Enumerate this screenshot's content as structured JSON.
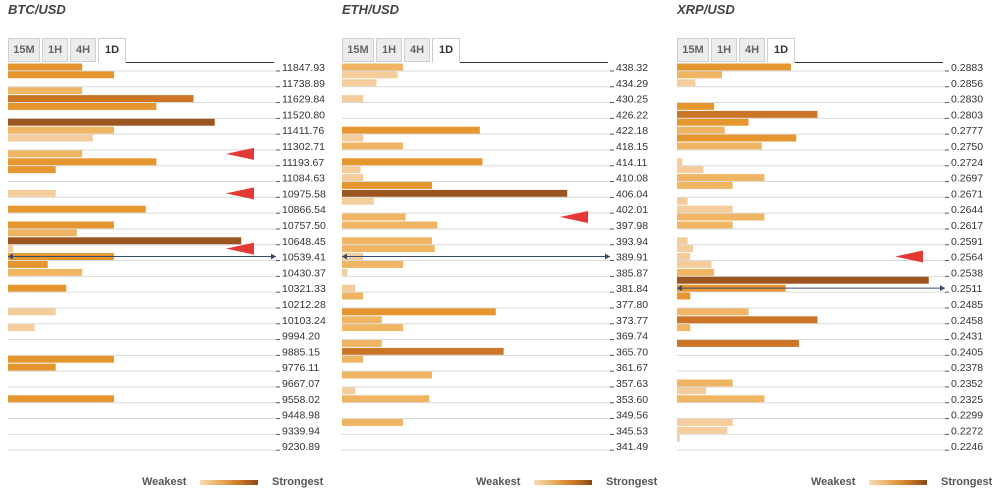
{
  "legend": {
    "weakest": "Weakest",
    "strongest": "Strongest"
  },
  "tabs": [
    "15M",
    "1H",
    "4H",
    "1D"
  ],
  "active_tab": "1D",
  "colors": {
    "lvl1": "#f5cc9c",
    "lvl2": "#efb562",
    "lvl3": "#e6962f",
    "lvl4": "#cd7526",
    "lvl5": "#9b5520",
    "arrow": "#e53935",
    "grid": "#d9d9d9"
  },
  "chart_data": [
    {
      "type": "bar",
      "title": "BTC/USD",
      "ticks": [
        "11847.93",
        "11738.89",
        "11629.84",
        "11520.80",
        "11411.76",
        "11302.71",
        "11193.67",
        "11084.63",
        "10975.58",
        "10866.54",
        "10757.50",
        "10648.45",
        "10539.41",
        "10430.37",
        "10321.33",
        "10212.28",
        "10103.24",
        "9994.20",
        "9885.15",
        "9776.11",
        "9667.07",
        "9558.02",
        "9448.98",
        "9339.94",
        "9230.89"
      ],
      "current_price_row": 24,
      "arrows": [
        11,
        16,
        23
      ],
      "bars": [
        {
          "row": 0,
          "value": 28,
          "level": 3
        },
        {
          "row": 1,
          "value": 40,
          "level": 3
        },
        {
          "row": 3,
          "value": 28,
          "level": 2
        },
        {
          "row": 4,
          "value": 70,
          "level": 4
        },
        {
          "row": 5,
          "value": 56,
          "level": 3
        },
        {
          "row": 7,
          "value": 78,
          "level": 5
        },
        {
          "row": 8,
          "value": 40,
          "level": 2
        },
        {
          "row": 9,
          "value": 32,
          "level": 1
        },
        {
          "row": 11,
          "value": 28,
          "level": 2
        },
        {
          "row": 12,
          "value": 56,
          "level": 3
        },
        {
          "row": 13,
          "value": 18,
          "level": 3
        },
        {
          "row": 16,
          "value": 18,
          "level": 1
        },
        {
          "row": 18,
          "value": 52,
          "level": 3
        },
        {
          "row": 20,
          "value": 40,
          "level": 3
        },
        {
          "row": 21,
          "value": 26,
          "level": 2
        },
        {
          "row": 22,
          "value": 88,
          "level": 5
        },
        {
          "row": 23,
          "value": 2,
          "level": 1
        },
        {
          "row": 24,
          "value": 40,
          "level": 3
        },
        {
          "row": 25,
          "value": 15,
          "level": 3
        },
        {
          "row": 26,
          "value": 28,
          "level": 2
        },
        {
          "row": 28,
          "value": 22,
          "level": 3
        },
        {
          "row": 31,
          "value": 18,
          "level": 1
        },
        {
          "row": 33,
          "value": 10,
          "level": 1
        },
        {
          "row": 37,
          "value": 40,
          "level": 3
        },
        {
          "row": 38,
          "value": 18,
          "level": 3
        },
        {
          "row": 42,
          "value": 40,
          "level": 3
        }
      ]
    },
    {
      "type": "bar",
      "title": "ETH/USD",
      "ticks": [
        "438.32",
        "434.29",
        "430.25",
        "426.22",
        "422.18",
        "418.15",
        "414.11",
        "410.08",
        "406.04",
        "402.01",
        "397.98",
        "393.94",
        "389.91",
        "385.87",
        "381.84",
        "377.80",
        "373.77",
        "369.74",
        "365.70",
        "361.67",
        "357.63",
        "353.60",
        "349.56",
        "345.53",
        "341.49"
      ],
      "current_price_row": 24,
      "arrows": [
        19
      ],
      "bars": [
        {
          "row": 0,
          "value": 23,
          "level": 2
        },
        {
          "row": 1,
          "value": 21,
          "level": 1
        },
        {
          "row": 2,
          "value": 13,
          "level": 1
        },
        {
          "row": 4,
          "value": 8,
          "level": 1
        },
        {
          "row": 8,
          "value": 52,
          "level": 3
        },
        {
          "row": 9,
          "value": 8,
          "level": 1
        },
        {
          "row": 10,
          "value": 23,
          "level": 2
        },
        {
          "row": 12,
          "value": 53,
          "level": 3
        },
        {
          "row": 13,
          "value": 7,
          "level": 1
        },
        {
          "row": 14,
          "value": 8,
          "level": 1
        },
        {
          "row": 15,
          "value": 34,
          "level": 3
        },
        {
          "row": 16,
          "value": 85,
          "level": 5
        },
        {
          "row": 17,
          "value": 12,
          "level": 1
        },
        {
          "row": 19,
          "value": 24,
          "level": 2
        },
        {
          "row": 20,
          "value": 36,
          "level": 2
        },
        {
          "row": 22,
          "value": 34,
          "level": 2
        },
        {
          "row": 23,
          "value": 35,
          "level": 2
        },
        {
          "row": 24,
          "value": 8,
          "level": 1
        },
        {
          "row": 25,
          "value": 23,
          "level": 2
        },
        {
          "row": 26,
          "value": 2,
          "level": 1
        },
        {
          "row": 28,
          "value": 5,
          "level": 1
        },
        {
          "row": 29,
          "value": 8,
          "level": 2
        },
        {
          "row": 31,
          "value": 58,
          "level": 3
        },
        {
          "row": 32,
          "value": 15,
          "level": 2
        },
        {
          "row": 33,
          "value": 23,
          "level": 2
        },
        {
          "row": 35,
          "value": 15,
          "level": 2
        },
        {
          "row": 36,
          "value": 61,
          "level": 4
        },
        {
          "row": 37,
          "value": 8,
          "level": 2
        },
        {
          "row": 39,
          "value": 34,
          "level": 2
        },
        {
          "row": 41,
          "value": 5,
          "level": 1
        },
        {
          "row": 42,
          "value": 33,
          "level": 2
        },
        {
          "row": 45,
          "value": 23,
          "level": 2
        }
      ]
    },
    {
      "type": "bar",
      "title": "XRP/USD",
      "ticks": [
        "0.2883",
        "0.2856",
        "0.2830",
        "0.2803",
        "0.2777",
        "0.2750",
        "0.2724",
        "0.2697",
        "0.2671",
        "0.2644",
        "0.2617",
        "0.2591",
        "0.2564",
        "0.2538",
        "0.2511",
        "0.2485",
        "0.2458",
        "0.2431",
        "0.2405",
        "0.2378",
        "0.2352",
        "0.2325",
        "0.2299",
        "0.2272",
        "0.2246"
      ],
      "current_price_row": 28,
      "arrows": [
        24
      ],
      "bars": [
        {
          "row": 0,
          "value": 43,
          "level": 3
        },
        {
          "row": 1,
          "value": 17,
          "level": 2
        },
        {
          "row": 2,
          "value": 7,
          "level": 1
        },
        {
          "row": 5,
          "value": 14,
          "level": 3
        },
        {
          "row": 6,
          "value": 53,
          "level": 4
        },
        {
          "row": 7,
          "value": 27,
          "level": 3
        },
        {
          "row": 8,
          "value": 18,
          "level": 2
        },
        {
          "row": 9,
          "value": 45,
          "level": 3
        },
        {
          "row": 10,
          "value": 32,
          "level": 2
        },
        {
          "row": 12,
          "value": 2,
          "level": 1
        },
        {
          "row": 13,
          "value": 10,
          "level": 1
        },
        {
          "row": 14,
          "value": 33,
          "level": 2
        },
        {
          "row": 15,
          "value": 21,
          "level": 2
        },
        {
          "row": 17,
          "value": 4,
          "level": 1
        },
        {
          "row": 18,
          "value": 21,
          "level": 1
        },
        {
          "row": 19,
          "value": 33,
          "level": 2
        },
        {
          "row": 20,
          "value": 21,
          "level": 2
        },
        {
          "row": 22,
          "value": 4,
          "level": 1
        },
        {
          "row": 23,
          "value": 6,
          "level": 1
        },
        {
          "row": 24,
          "value": 5,
          "level": 1
        },
        {
          "row": 25,
          "value": 13,
          "level": 1
        },
        {
          "row": 26,
          "value": 14,
          "level": 2
        },
        {
          "row": 27,
          "value": 95,
          "level": 5
        },
        {
          "row": 28,
          "value": 41,
          "level": 3
        },
        {
          "row": 29,
          "value": 5,
          "level": 3
        },
        {
          "row": 31,
          "value": 27,
          "level": 2
        },
        {
          "row": 32,
          "value": 53,
          "level": 4
        },
        {
          "row": 33,
          "value": 5,
          "level": 2
        },
        {
          "row": 35,
          "value": 46,
          "level": 4
        },
        {
          "row": 40,
          "value": 21,
          "level": 2
        },
        {
          "row": 41,
          "value": 11,
          "level": 1
        },
        {
          "row": 42,
          "value": 33,
          "level": 2
        },
        {
          "row": 45,
          "value": 21,
          "level": 1
        },
        {
          "row": 46,
          "value": 19,
          "level": 1
        },
        {
          "row": 47,
          "value": 1,
          "level": 1
        }
      ]
    }
  ]
}
